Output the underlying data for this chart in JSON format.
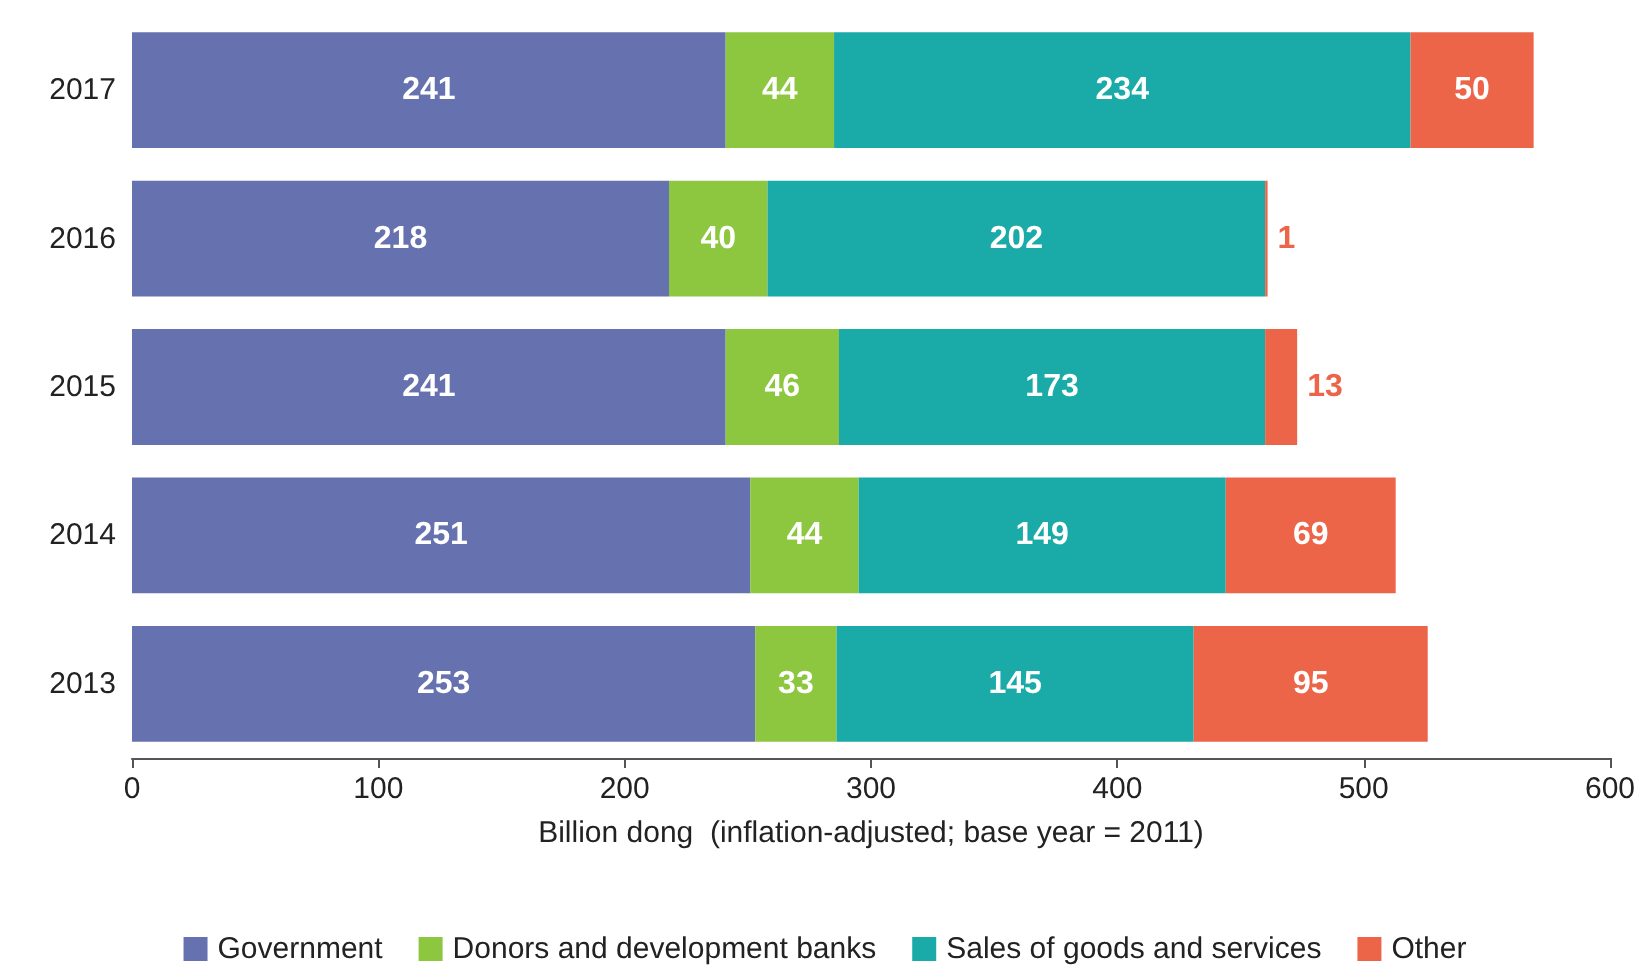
{
  "chart_data": {
    "type": "bar",
    "orientation": "horizontal",
    "stacked": true,
    "xlabel": "Billion dong  (inflation-adjusted; base year = 2011)",
    "categories": [
      "2017",
      "2016",
      "2015",
      "2014",
      "2013"
    ],
    "series": [
      {
        "name": "Government",
        "color": "#6672b0",
        "values": [
          241,
          218,
          241,
          251,
          253
        ]
      },
      {
        "name": "Donors and development banks",
        "color": "#8dc63f",
        "values": [
          44,
          40,
          46,
          44,
          33
        ]
      },
      {
        "name": "Sales of goods and services",
        "color": "#1aaba8",
        "values": [
          234,
          202,
          173,
          149,
          145
        ]
      },
      {
        "name": "Other",
        "color": "#ec6548",
        "values": [
          50,
          1,
          13,
          69,
          95
        ]
      }
    ],
    "xlim": [
      0,
      600
    ],
    "xticks": [
      0,
      100,
      200,
      300,
      400,
      500,
      600
    ],
    "grid": false,
    "legend": "bottom",
    "data_labels": true
  }
}
